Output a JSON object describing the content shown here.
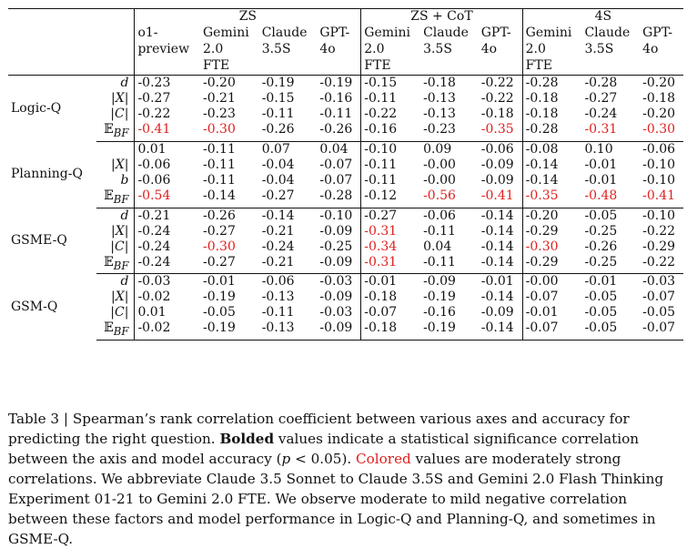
{
  "table": {
    "header": {
      "groups": [
        "ZS",
        "ZS + CoT",
        "4S"
      ],
      "zs_models": [
        {
          "l1": "o1-",
          "l2": "preview",
          "l3": ""
        },
        {
          "l1": "Gemini",
          "l2": "2.0",
          "l3": "FTE"
        },
        {
          "l1": "Claude",
          "l2": "3.5S",
          "l3": ""
        },
        {
          "l1": "GPT-",
          "l2": "4o",
          "l3": ""
        }
      ],
      "other_models": [
        {
          "l1": "Gemini",
          "l2": "2.0",
          "l3": "FTE"
        },
        {
          "l1": "Claude",
          "l2": "3.5S",
          "l3": ""
        },
        {
          "l1": "GPT-",
          "l2": "4o",
          "l3": ""
        }
      ]
    },
    "sections": [
      {
        "name": "Logic-Q",
        "rows": [
          {
            "sym": "d",
            "cells": [
              [
                "-0.23",
                "b"
              ],
              [
                "-0.20",
                "b"
              ],
              [
                "-0.19",
                "b"
              ],
              [
                "-0.19",
                "b"
              ],
              [
                "-0.15",
                "b"
              ],
              [
                "-0.18",
                "b"
              ],
              [
                "-0.22",
                "b"
              ],
              [
                "-0.28",
                "b"
              ],
              [
                "-0.28",
                "b"
              ],
              [
                "-0.20",
                "b"
              ]
            ]
          },
          {
            "sym": "|X|",
            "cells": [
              [
                "-0.27",
                "b"
              ],
              [
                "-0.21",
                "b"
              ],
              [
                "-0.15",
                "b"
              ],
              [
                "-0.16",
                "b"
              ],
              [
                "-0.11",
                "b"
              ],
              [
                "-0.13",
                "b"
              ],
              [
                "-0.22",
                "b"
              ],
              [
                "-0.18",
                "b"
              ],
              [
                "-0.27",
                "b"
              ],
              [
                "-0.18",
                "b"
              ]
            ]
          },
          {
            "sym": "|C|",
            "cells": [
              [
                "-0.22",
                "b"
              ],
              [
                "-0.23",
                "b"
              ],
              [
                "-0.11",
                "b"
              ],
              [
                "-0.11",
                "b"
              ],
              [
                "-0.22",
                "b"
              ],
              [
                "-0.13",
                "b"
              ],
              [
                "-0.18",
                "b"
              ],
              [
                "-0.18",
                "b"
              ],
              [
                "-0.24",
                "b"
              ],
              [
                "-0.20",
                "b"
              ]
            ]
          },
          {
            "sym": "E_BF",
            "cells": [
              [
                "-0.41",
                "br"
              ],
              [
                "-0.30",
                "br"
              ],
              [
                "-0.26",
                "b"
              ],
              [
                "-0.26",
                "b"
              ],
              [
                "-0.16",
                "b"
              ],
              [
                "-0.23",
                "b"
              ],
              [
                "-0.35",
                "br"
              ],
              [
                "-0.28",
                "b"
              ],
              [
                "-0.31",
                "br"
              ],
              [
                "-0.30",
                "br"
              ]
            ]
          }
        ]
      },
      {
        "name": "Planning-Q",
        "rows": [
          {
            "sym": "",
            "cells": [
              [
                "0.01",
                "n"
              ],
              [
                "-0.11",
                "b"
              ],
              [
                "0.07",
                "b"
              ],
              [
                "0.04",
                "b"
              ],
              [
                "-0.10",
                "b"
              ],
              [
                "0.09",
                "b"
              ],
              [
                "-0.06",
                "b"
              ],
              [
                "-0.08",
                "b"
              ],
              [
                "0.10",
                "b"
              ],
              [
                "-0.06",
                "b"
              ]
            ]
          },
          {
            "sym": "|X|",
            "cells": [
              [
                "-0.06",
                "b"
              ],
              [
                "-0.11",
                "b"
              ],
              [
                "-0.04",
                "b"
              ],
              [
                "-0.07",
                "b"
              ],
              [
                "-0.11",
                "b"
              ],
              [
                "-0.00",
                "n"
              ],
              [
                "-0.09",
                "b"
              ],
              [
                "-0.14",
                "b"
              ],
              [
                "-0.01",
                "n"
              ],
              [
                "-0.10",
                "b"
              ]
            ]
          },
          {
            "sym": "b",
            "cells": [
              [
                "-0.06",
                "b"
              ],
              [
                "-0.11",
                "b"
              ],
              [
                "-0.04",
                "b"
              ],
              [
                "-0.07",
                "b"
              ],
              [
                "-0.11",
                "b"
              ],
              [
                "-0.00",
                "n"
              ],
              [
                "-0.09",
                "b"
              ],
              [
                "-0.14",
                "b"
              ],
              [
                "-0.01",
                "n"
              ],
              [
                "-0.10",
                "b"
              ]
            ]
          },
          {
            "sym": "E_BF",
            "cells": [
              [
                "-0.54",
                "br"
              ],
              [
                "-0.14",
                "b"
              ],
              [
                "-0.27",
                "b"
              ],
              [
                "-0.28",
                "b"
              ],
              [
                "-0.12",
                "b"
              ],
              [
                "-0.56",
                "br"
              ],
              [
                "-0.41",
                "br"
              ],
              [
                "-0.35",
                "br"
              ],
              [
                "-0.48",
                "br"
              ],
              [
                "-0.41",
                "br"
              ]
            ]
          }
        ]
      },
      {
        "name": "GSME-Q",
        "rows": [
          {
            "sym": "d",
            "cells": [
              [
                "-0.21",
                "b"
              ],
              [
                "-0.26",
                "b"
              ],
              [
                "-0.14",
                "n"
              ],
              [
                "-0.10",
                "n"
              ],
              [
                "-0.27",
                "b"
              ],
              [
                "-0.06",
                "n"
              ],
              [
                "-0.14",
                "n"
              ],
              [
                "-0.20",
                "b"
              ],
              [
                "-0.05",
                "n"
              ],
              [
                "-0.10",
                "n"
              ]
            ]
          },
          {
            "sym": "|X|",
            "cells": [
              [
                "-0.24",
                "b"
              ],
              [
                "-0.27",
                "b"
              ],
              [
                "-0.21",
                "b"
              ],
              [
                "-0.09",
                "n"
              ],
              [
                "-0.31",
                "br"
              ],
              [
                "-0.11",
                "n"
              ],
              [
                "-0.14",
                "n"
              ],
              [
                "-0.29",
                "b"
              ],
              [
                "-0.25",
                "b"
              ],
              [
                "-0.22",
                "b"
              ]
            ]
          },
          {
            "sym": "|C|",
            "cells": [
              [
                "-0.24",
                "b"
              ],
              [
                "-0.30",
                "br"
              ],
              [
                "-0.24",
                "b"
              ],
              [
                "-0.25",
                "b"
              ],
              [
                "-0.34",
                "br"
              ],
              [
                "0.04",
                "n"
              ],
              [
                "-0.14",
                "n"
              ],
              [
                "-0.30",
                "br"
              ],
              [
                "-0.26",
                "b"
              ],
              [
                "-0.29",
                "b"
              ]
            ]
          },
          {
            "sym": "E_BF",
            "cells": [
              [
                "-0.24",
                "b"
              ],
              [
                "-0.27",
                "b"
              ],
              [
                "-0.21",
                "b"
              ],
              [
                "-0.09",
                "n"
              ],
              [
                "-0.31",
                "br"
              ],
              [
                "-0.11",
                "n"
              ],
              [
                "-0.14",
                "n"
              ],
              [
                "-0.29",
                "b"
              ],
              [
                "-0.25",
                "b"
              ],
              [
                "-0.22",
                "b"
              ]
            ]
          }
        ]
      },
      {
        "name": "GSM-Q",
        "rows": [
          {
            "sym": "d",
            "cells": [
              [
                "-0.03",
                "n"
              ],
              [
                "-0.01",
                "n"
              ],
              [
                "-0.06",
                "n"
              ],
              [
                "-0.03",
                "n"
              ],
              [
                "-0.01",
                "n"
              ],
              [
                "-0.09",
                "n"
              ],
              [
                "-0.01",
                "n"
              ],
              [
                "-0.00",
                "n"
              ],
              [
                "-0.01",
                "n"
              ],
              [
                "-0.03",
                "n"
              ]
            ]
          },
          {
            "sym": "|X|",
            "cells": [
              [
                "-0.02",
                "n"
              ],
              [
                "-0.19",
                "b"
              ],
              [
                "-0.13",
                "b"
              ],
              [
                "-0.09",
                "n"
              ],
              [
                "-0.18",
                "b"
              ],
              [
                "-0.19",
                "b"
              ],
              [
                "-0.14",
                "b"
              ],
              [
                "-0.07",
                "n"
              ],
              [
                "-0.05",
                "n"
              ],
              [
                "-0.07",
                "n"
              ]
            ]
          },
          {
            "sym": "|C|",
            "cells": [
              [
                "0.01",
                "n"
              ],
              [
                "-0.05",
                "n"
              ],
              [
                "-0.11",
                "n"
              ],
              [
                "-0.03",
                "n"
              ],
              [
                "-0.07",
                "n"
              ],
              [
                "-0.16",
                "b"
              ],
              [
                "-0.09",
                "n"
              ],
              [
                "-0.01",
                "n"
              ],
              [
                "-0.05",
                "n"
              ],
              [
                "-0.05",
                "n"
              ]
            ]
          },
          {
            "sym": "E_BF",
            "cells": [
              [
                "-0.02",
                "n"
              ],
              [
                "-0.19",
                "b"
              ],
              [
                "-0.13",
                "b"
              ],
              [
                "-0.09",
                "n"
              ],
              [
                "-0.18",
                "b"
              ],
              [
                "-0.19",
                "b"
              ],
              [
                "-0.14",
                "b"
              ],
              [
                "-0.07",
                "n"
              ],
              [
                "-0.05",
                "n"
              ],
              [
                "-0.07",
                "n"
              ]
            ]
          }
        ]
      }
    ]
  },
  "caption": {
    "prefix": "Table 3 | Spearman’s rank correlation coefficient between various axes and accuracy for predicting the right question. ",
    "bold": "Bolded",
    "mid1": " values indicate a statistical significance correlation between the axis and model accuracy (",
    "p": "p",
    "mid2": " < 0.05). ",
    "colored": "Colored",
    "rest": " values are moderately strong correlations. We abbreviate Claude 3.5 Sonnet to Claude 3.5S and Gemini 2.0 Flash Thinking Experiment 01-21 to Gemini 2.0 FTE. We observe moderate to mild negative correlation between these factors and model performance in Logic-Q and Planning-Q, and sometimes in GSME-Q."
  },
  "colors": {
    "highlight": "#e02020",
    "text": "#111111"
  }
}
